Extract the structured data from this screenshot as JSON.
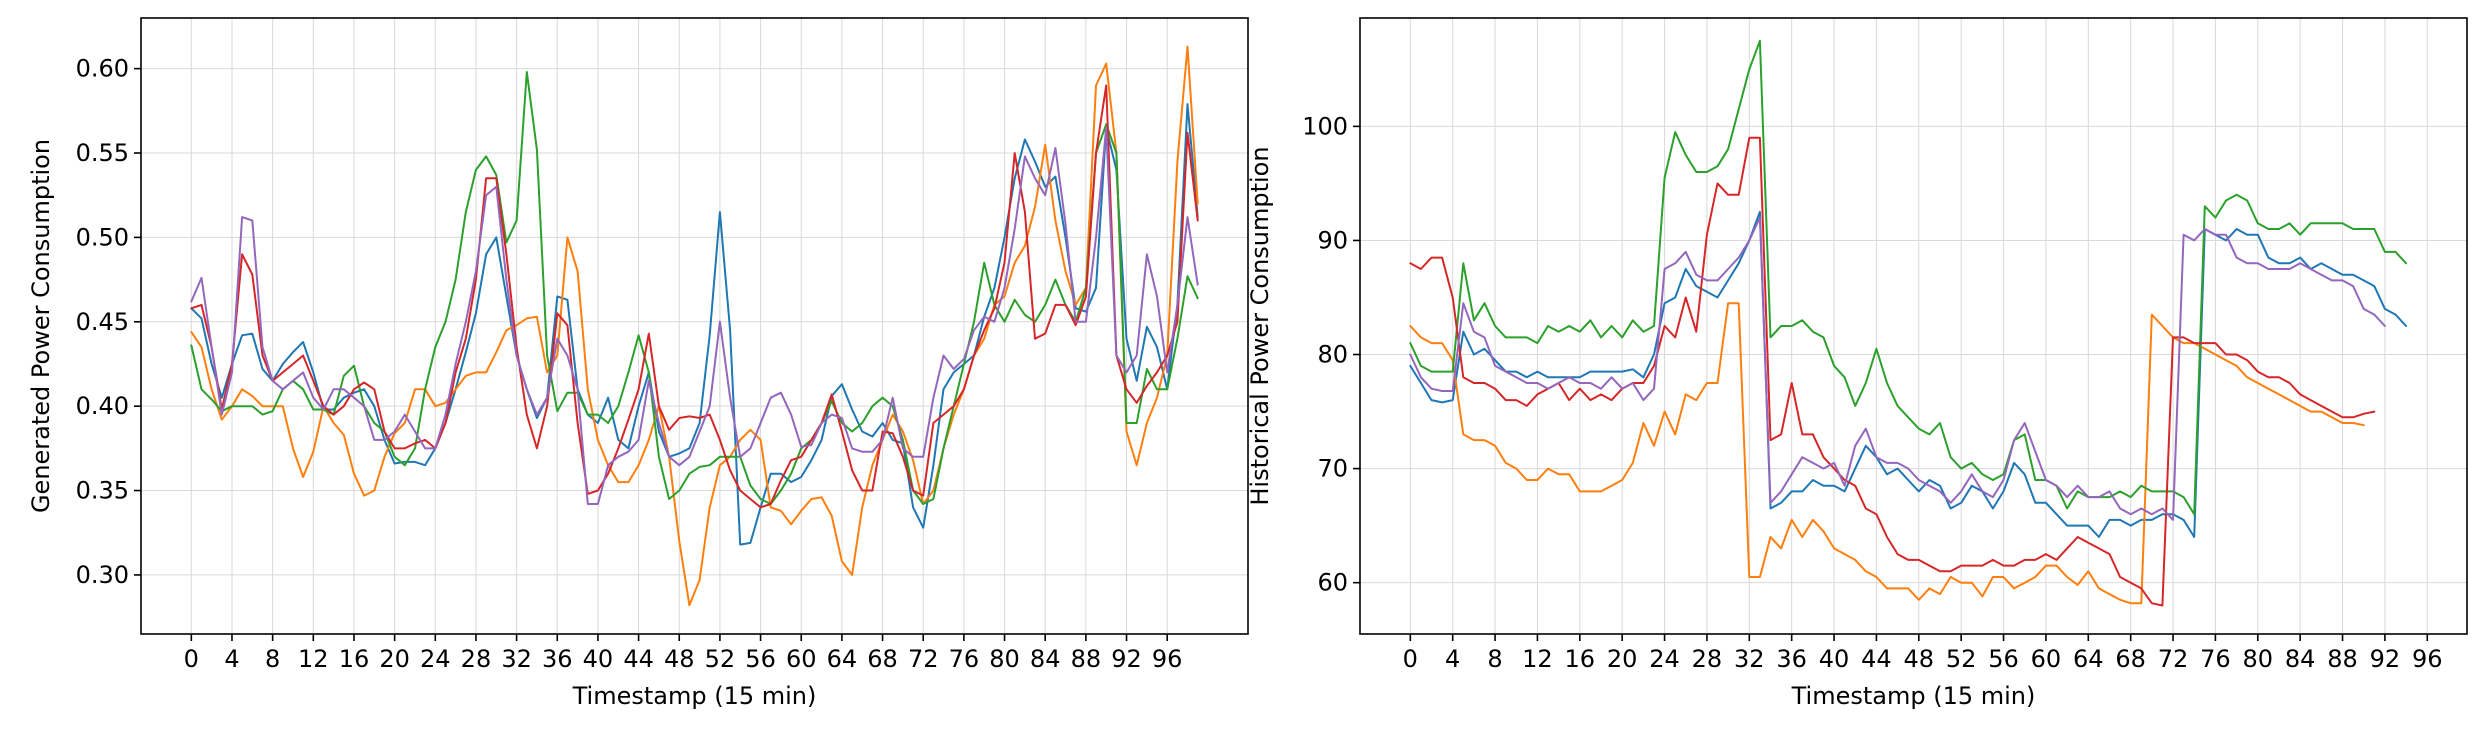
{
  "chart_data": [
    {
      "type": "line",
      "title": "",
      "xlabel": "Timestamp (15 min)",
      "ylabel": "Generated Power Consumption",
      "xlim": [
        -4.95,
        103.95
      ],
      "ylim": [
        0.265,
        0.63
      ],
      "xticks": [
        0,
        4,
        8,
        12,
        16,
        20,
        24,
        28,
        32,
        36,
        40,
        44,
        48,
        52,
        56,
        60,
        64,
        68,
        72,
        76,
        80,
        84,
        88,
        92,
        96
      ],
      "yticks": [
        0.3,
        0.35,
        0.4,
        0.45,
        0.5,
        0.55,
        0.6
      ],
      "ytick_labels": [
        "0.30",
        "0.35",
        "0.40",
        "0.45",
        "0.50",
        "0.55",
        "0.60"
      ],
      "grid": true,
      "x_start": 0,
      "series": [
        {
          "color": "#1f77b4",
          "values": [
            0.458,
            0.452,
            0.425,
            0.405,
            0.425,
            0.442,
            0.443,
            0.422,
            0.415,
            0.425,
            0.432,
            0.438,
            0.42,
            0.398,
            0.398,
            0.405,
            0.408,
            0.41,
            0.4,
            0.38,
            0.366,
            0.367,
            0.367,
            0.365,
            0.375,
            0.39,
            0.41,
            0.432,
            0.455,
            0.49,
            0.5,
            0.465,
            0.43,
            0.41,
            0.393,
            0.405,
            0.465,
            0.463,
            0.41,
            0.395,
            0.39,
            0.405,
            0.38,
            0.375,
            0.4,
            0.42,
            0.385,
            0.37,
            0.372,
            0.375,
            0.39,
            0.442,
            0.515,
            0.445,
            0.318,
            0.319,
            0.34,
            0.36,
            0.36,
            0.355,
            0.358,
            0.368,
            0.38,
            0.406,
            0.413,
            0.398,
            0.385,
            0.382,
            0.39,
            0.38,
            0.378,
            0.34,
            0.328,
            0.365,
            0.41,
            0.42,
            0.425,
            0.43,
            0.453,
            0.47,
            0.5,
            0.535,
            0.558,
            0.545,
            0.53,
            0.536,
            0.5,
            0.458,
            0.456,
            0.47,
            0.565,
            0.54,
            0.44,
            0.415,
            0.447,
            0.435,
            0.41,
            0.46,
            0.579,
            0.512
          ]
        },
        {
          "color": "#ff7f0e",
          "values": [
            0.444,
            0.435,
            0.41,
            0.392,
            0.4,
            0.41,
            0.406,
            0.4,
            0.4,
            0.4,
            0.375,
            0.358,
            0.373,
            0.4,
            0.39,
            0.383,
            0.36,
            0.347,
            0.35,
            0.37,
            0.384,
            0.39,
            0.41,
            0.41,
            0.4,
            0.402,
            0.41,
            0.418,
            0.42,
            0.42,
            0.432,
            0.445,
            0.448,
            0.452,
            0.453,
            0.42,
            0.43,
            0.5,
            0.48,
            0.41,
            0.38,
            0.365,
            0.355,
            0.355,
            0.365,
            0.38,
            0.4,
            0.37,
            0.32,
            0.282,
            0.297,
            0.34,
            0.365,
            0.37,
            0.38,
            0.386,
            0.38,
            0.34,
            0.338,
            0.33,
            0.338,
            0.345,
            0.346,
            0.335,
            0.308,
            0.3,
            0.34,
            0.365,
            0.38,
            0.395,
            0.385,
            0.368,
            0.342,
            0.35,
            0.375,
            0.395,
            0.41,
            0.43,
            0.44,
            0.46,
            0.465,
            0.485,
            0.495,
            0.518,
            0.555,
            0.51,
            0.48,
            0.46,
            0.47,
            0.59,
            0.603,
            0.55,
            0.385,
            0.365,
            0.39,
            0.405,
            0.43,
            0.545,
            0.613,
            0.52
          ]
        },
        {
          "color": "#2ca02c",
          "values": [
            0.436,
            0.41,
            0.404,
            0.397,
            0.4,
            0.4,
            0.4,
            0.395,
            0.397,
            0.41,
            0.415,
            0.41,
            0.398,
            0.398,
            0.395,
            0.418,
            0.424,
            0.4,
            0.39,
            0.385,
            0.37,
            0.365,
            0.375,
            0.41,
            0.435,
            0.45,
            0.475,
            0.515,
            0.54,
            0.548,
            0.537,
            0.497,
            0.51,
            0.598,
            0.552,
            0.43,
            0.397,
            0.408,
            0.408,
            0.395,
            0.395,
            0.39,
            0.4,
            0.42,
            0.442,
            0.42,
            0.37,
            0.345,
            0.35,
            0.36,
            0.364,
            0.365,
            0.37,
            0.37,
            0.37,
            0.353,
            0.345,
            0.342,
            0.35,
            0.36,
            0.375,
            0.38,
            0.39,
            0.403,
            0.39,
            0.385,
            0.39,
            0.4,
            0.405,
            0.4,
            0.38,
            0.35,
            0.342,
            0.345,
            0.375,
            0.4,
            0.425,
            0.45,
            0.485,
            0.46,
            0.45,
            0.463,
            0.454,
            0.45,
            0.46,
            0.475,
            0.46,
            0.45,
            0.47,
            0.55,
            0.567,
            0.55,
            0.39,
            0.39,
            0.422,
            0.41,
            0.41,
            0.44,
            0.477,
            0.464
          ]
        },
        {
          "color": "#d62728",
          "values": [
            0.458,
            0.46,
            0.435,
            0.398,
            0.425,
            0.49,
            0.478,
            0.43,
            0.415,
            0.42,
            0.425,
            0.43,
            0.415,
            0.4,
            0.395,
            0.4,
            0.41,
            0.414,
            0.41,
            0.385,
            0.375,
            0.375,
            0.378,
            0.38,
            0.375,
            0.39,
            0.42,
            0.44,
            0.475,
            0.535,
            0.535,
            0.49,
            0.435,
            0.395,
            0.375,
            0.4,
            0.455,
            0.448,
            0.39,
            0.348,
            0.35,
            0.36,
            0.375,
            0.392,
            0.41,
            0.443,
            0.4,
            0.386,
            0.393,
            0.394,
            0.393,
            0.395,
            0.38,
            0.362,
            0.35,
            0.345,
            0.34,
            0.342,
            0.356,
            0.368,
            0.37,
            0.38,
            0.39,
            0.407,
            0.385,
            0.362,
            0.35,
            0.35,
            0.385,
            0.384,
            0.37,
            0.35,
            0.347,
            0.39,
            0.395,
            0.4,
            0.41,
            0.43,
            0.445,
            0.458,
            0.485,
            0.55,
            0.515,
            0.44,
            0.443,
            0.46,
            0.46,
            0.448,
            0.465,
            0.55,
            0.59,
            0.43,
            0.41,
            0.402,
            0.412,
            0.42,
            0.43,
            0.45,
            0.562,
            0.51
          ]
        },
        {
          "color": "#9467bd",
          "values": [
            0.462,
            0.476,
            0.435,
            0.395,
            0.42,
            0.512,
            0.51,
            0.435,
            0.415,
            0.41,
            0.415,
            0.42,
            0.405,
            0.398,
            0.41,
            0.41,
            0.405,
            0.4,
            0.38,
            0.38,
            0.385,
            0.395,
            0.385,
            0.375,
            0.375,
            0.395,
            0.425,
            0.45,
            0.48,
            0.525,
            0.53,
            0.475,
            0.43,
            0.41,
            0.395,
            0.405,
            0.44,
            0.43,
            0.41,
            0.342,
            0.342,
            0.365,
            0.37,
            0.373,
            0.38,
            0.415,
            0.39,
            0.37,
            0.365,
            0.37,
            0.385,
            0.4,
            0.45,
            0.405,
            0.37,
            0.375,
            0.39,
            0.405,
            0.408,
            0.395,
            0.376,
            0.377,
            0.39,
            0.395,
            0.393,
            0.375,
            0.373,
            0.373,
            0.38,
            0.405,
            0.375,
            0.37,
            0.37,
            0.405,
            0.43,
            0.422,
            0.428,
            0.445,
            0.453,
            0.45,
            0.47,
            0.505,
            0.548,
            0.535,
            0.525,
            0.553,
            0.508,
            0.45,
            0.45,
            0.5,
            0.565,
            0.43,
            0.42,
            0.43,
            0.49,
            0.465,
            0.42,
            0.46,
            0.512,
            0.472
          ]
        }
      ]
    },
    {
      "type": "line",
      "title": "",
      "xlabel": "Timestamp (15 min)",
      "ylabel": "Historical Power Consumption",
      "xlim": [
        -4.75,
        99.75
      ],
      "ylim": [
        55.5,
        109.5
      ],
      "xticks": [
        0,
        4,
        8,
        12,
        16,
        20,
        24,
        28,
        32,
        36,
        40,
        44,
        48,
        52,
        56,
        60,
        64,
        68,
        72,
        76,
        80,
        84,
        88,
        92,
        96
      ],
      "yticks": [
        60,
        70,
        80,
        90,
        100
      ],
      "ytick_labels": [
        "60",
        "70",
        "80",
        "90",
        "100"
      ],
      "grid": true,
      "x_start": 0,
      "series": [
        {
          "color": "#1f77b4",
          "values": [
            79,
            77.5,
            76,
            75.8,
            76,
            82,
            80,
            80.5,
            79.5,
            78.5,
            78.5,
            78,
            78.5,
            78,
            78,
            78,
            78,
            78.5,
            78.5,
            78.5,
            78.5,
            78.7,
            78,
            80,
            84.5,
            85,
            87.5,
            86,
            85.5,
            85,
            86.5,
            88,
            90,
            92.5,
            66.5,
            67,
            68,
            68,
            69,
            68.5,
            68.5,
            68,
            70,
            72,
            71,
            69.5,
            70,
            69,
            68,
            69,
            68.5,
            66.5,
            67,
            68.5,
            68,
            66.5,
            68,
            70.5,
            69.5,
            67,
            67,
            66,
            65,
            65,
            65,
            64,
            65.5,
            65.5,
            65,
            65.5,
            65.5,
            66,
            66,
            65.5,
            64,
            91,
            90.5,
            90,
            91,
            90.5,
            90.5,
            88.5,
            88,
            88,
            88.5,
            87.5,
            88,
            87.5,
            87,
            87,
            86.5,
            86,
            84,
            83.5,
            82.5
          ]
        },
        {
          "color": "#ff7f0e",
          "values": [
            82.5,
            81.5,
            81,
            81,
            79.5,
            73,
            72.5,
            72.5,
            72,
            70.5,
            70,
            69,
            69,
            70,
            69.5,
            69.5,
            68,
            68,
            68,
            68.5,
            69,
            70.5,
            74,
            72,
            75,
            73,
            76.5,
            76,
            77.5,
            77.5,
            84.5,
            84.5,
            60.5,
            60.5,
            64,
            63,
            65.5,
            64,
            65.5,
            64.5,
            63,
            62.5,
            62,
            61,
            60.5,
            59.5,
            59.5,
            59.5,
            58.5,
            59.5,
            59,
            60.5,
            60,
            60,
            58.8,
            60.5,
            60.5,
            59.5,
            60,
            60.5,
            61.5,
            61.5,
            60.5,
            59.8,
            61,
            59.5,
            59,
            58.5,
            58.2,
            58.2,
            83.5,
            82.5,
            81.5,
            81,
            81,
            80.5,
            80,
            79.5,
            79,
            78,
            77.5,
            77,
            76.5,
            76,
            75.5,
            75,
            75,
            74.5,
            74,
            74,
            73.8
          ]
        },
        {
          "color": "#2ca02c",
          "values": [
            81,
            79,
            78.5,
            78.5,
            78.5,
            88,
            83,
            84.5,
            82.5,
            81.5,
            81.5,
            81.5,
            81,
            82.5,
            82,
            82.5,
            82,
            83,
            81.5,
            82.5,
            81.5,
            83,
            82,
            82.5,
            95.5,
            99.5,
            97.5,
            96,
            96,
            96.5,
            98,
            101.5,
            105,
            107.5,
            81.5,
            82.5,
            82.5,
            83,
            82,
            81.5,
            79,
            78,
            75.5,
            77.5,
            80.5,
            77.5,
            75.5,
            74.5,
            73.5,
            73,
            74,
            71,
            70,
            70.5,
            69.5,
            69,
            69.5,
            72.5,
            73,
            69,
            69,
            68.5,
            66.5,
            68,
            67.5,
            67.5,
            67.5,
            68,
            67.5,
            68.5,
            68,
            68,
            68,
            67.5,
            66,
            93,
            92,
            93.5,
            94,
            93.5,
            91.5,
            91,
            91,
            91.5,
            90.5,
            91.5,
            91.5,
            91.5,
            91.5,
            91,
            91,
            91,
            89,
            89,
            88
          ]
        },
        {
          "color": "#d62728",
          "values": [
            88,
            87.5,
            88.5,
            88.5,
            85,
            78,
            77.5,
            77.5,
            77,
            76,
            76,
            75.5,
            76.5,
            77,
            77.5,
            76,
            77,
            76,
            76.5,
            76,
            77,
            77.5,
            77.5,
            79,
            82.5,
            81.5,
            85,
            82,
            90.5,
            95,
            94,
            94,
            99,
            99,
            72.5,
            73,
            77.5,
            73,
            73,
            71,
            70,
            69,
            68.5,
            66.5,
            66,
            64,
            62.5,
            62,
            62,
            61.5,
            61,
            61,
            61.5,
            61.5,
            61.5,
            62,
            61.5,
            61.5,
            62,
            62,
            62.5,
            62,
            63,
            64,
            63.5,
            63,
            62.5,
            60.5,
            60,
            59.5,
            58.2,
            58,
            81.5,
            81.5,
            81,
            81,
            81,
            80,
            80,
            79.5,
            78.5,
            78,
            78,
            77.5,
            76.5,
            76,
            75.5,
            75,
            74.5,
            74.5,
            74.8,
            75
          ]
        },
        {
          "color": "#9467bd",
          "values": [
            80,
            78,
            77,
            76.8,
            76.8,
            84.5,
            82,
            81.5,
            79,
            78.5,
            78,
            77.5,
            77.5,
            77,
            77.5,
            78,
            77.5,
            77.5,
            77,
            78,
            77,
            77.5,
            76,
            77,
            87.5,
            88,
            89,
            87,
            86.5,
            86.5,
            87.5,
            88.5,
            90,
            92,
            67,
            68,
            69.5,
            71,
            70.5,
            70,
            70.5,
            68.5,
            72,
            73.5,
            71,
            70.5,
            70.5,
            70,
            69,
            68.5,
            68,
            67,
            68,
            69.5,
            68,
            67.5,
            69,
            72.5,
            74,
            71.5,
            69,
            68.5,
            67.5,
            68.5,
            67.5,
            67.5,
            68,
            66.5,
            66,
            66.5,
            66,
            66.5,
            65.5,
            90.5,
            90,
            91,
            90.5,
            90.5,
            88.5,
            88,
            88,
            87.5,
            87.5,
            87.5,
            88,
            87.5,
            87,
            86.5,
            86.5,
            86,
            84,
            83.5,
            82.5
          ]
        }
      ]
    }
  ]
}
